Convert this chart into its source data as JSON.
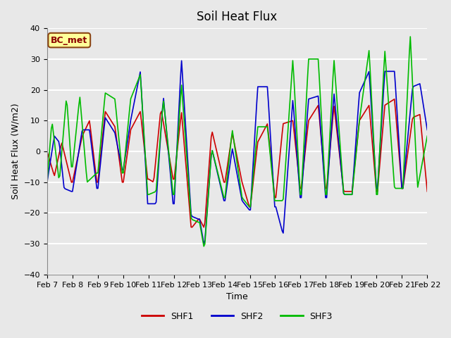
{
  "title": "Soil Heat Flux",
  "xlabel": "Time",
  "ylabel": "Soil Heat Flux (W/m2)",
  "ylim": [
    -40,
    40
  ],
  "bg_color": "#e8e8e8",
  "plot_bg_color": "#e8e8e8",
  "grid_color": "#ffffff",
  "shf1_color": "#cc0000",
  "shf2_color": "#0000cc",
  "shf3_color": "#00bb00",
  "annotation_text": "BC_met",
  "annotation_facecolor": "#ffff99",
  "annotation_edgecolor": "#8b4513",
  "annotation_textcolor": "#8b0000",
  "xtick_labels": [
    "Feb 7",
    "Feb 8",
    "Feb 9",
    "Feb 10",
    "Feb 11",
    "Feb 12",
    "Feb 13",
    "Feb 14",
    "Feb 15",
    "Feb 16",
    "Feb 17",
    "Feb 18",
    "Feb 19",
    "Feb 20",
    "Feb 21",
    "Feb 22"
  ],
  "legend_labels": [
    "SHF1",
    "SHF2",
    "SHF3"
  ]
}
